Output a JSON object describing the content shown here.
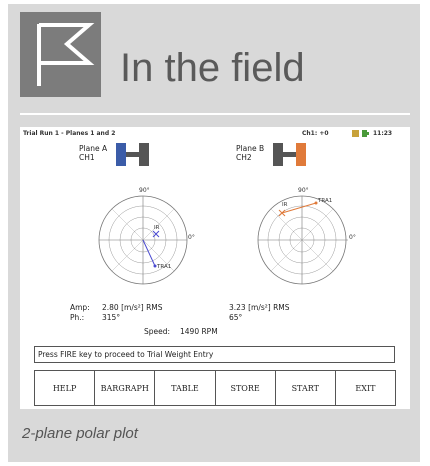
{
  "header": {
    "title": "In the field",
    "icon": "flag-icon"
  },
  "screen": {
    "status": {
      "title": "Trial Run 1 - Planes 1 and 2",
      "channel": "Ch1: +0",
      "time": "11:23"
    },
    "plane_a": {
      "name": "Plane A",
      "channel": "CH1",
      "color": "#3b5ca8",
      "angle_top": "90°",
      "angle_right": "0°",
      "markers": [
        "IR",
        "TRA1"
      ],
      "amp_label": "Amp:",
      "amp_value": "2.80 [m/s²] RMS",
      "phase_label": "Ph.:",
      "phase_value": "315°"
    },
    "plane_b": {
      "name": "Plane B",
      "channel": "CH2",
      "color": "#e07a3a",
      "angle_top": "90°",
      "angle_right": "0°",
      "markers": [
        "IR",
        "TRA1"
      ],
      "amp_value": "3.23 [m/s²] RMS",
      "phase_value": "65°"
    },
    "speed": {
      "label": "Speed:",
      "value": "1490 RPM"
    },
    "message": "Press FIRE key to proceed to Trial Weight Entry",
    "softkeys": [
      "HELP",
      "BARGRAPH",
      "TABLE",
      "STORE",
      "START",
      "EXIT"
    ]
  },
  "caption": "2-plane polar plot"
}
